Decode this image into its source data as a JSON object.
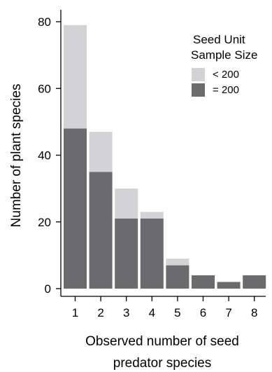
{
  "chart_data": {
    "type": "bar",
    "stacked": true,
    "categories": [
      "1",
      "2",
      "3",
      "4",
      "5",
      "6",
      "7",
      "8"
    ],
    "series": [
      {
        "name": "= 200",
        "color": "#6b6b6e",
        "values": [
          48,
          35,
          21,
          21,
          7,
          4,
          2,
          4
        ]
      },
      {
        "name": "< 200",
        "color": "#d3d3d5",
        "values": [
          31,
          12,
          9,
          2,
          2,
          0,
          0,
          0
        ]
      }
    ],
    "xlabel_lines": [
      "Observed number of seed",
      "predator species"
    ],
    "ylabel": "Number of plant species",
    "ylim": [
      0,
      80
    ],
    "yticks": [
      0,
      20,
      40,
      60,
      80
    ],
    "legend": {
      "title_lines": [
        "Seed Unit",
        "Sample Size"
      ],
      "position": "top-right"
    },
    "grid": false
  }
}
